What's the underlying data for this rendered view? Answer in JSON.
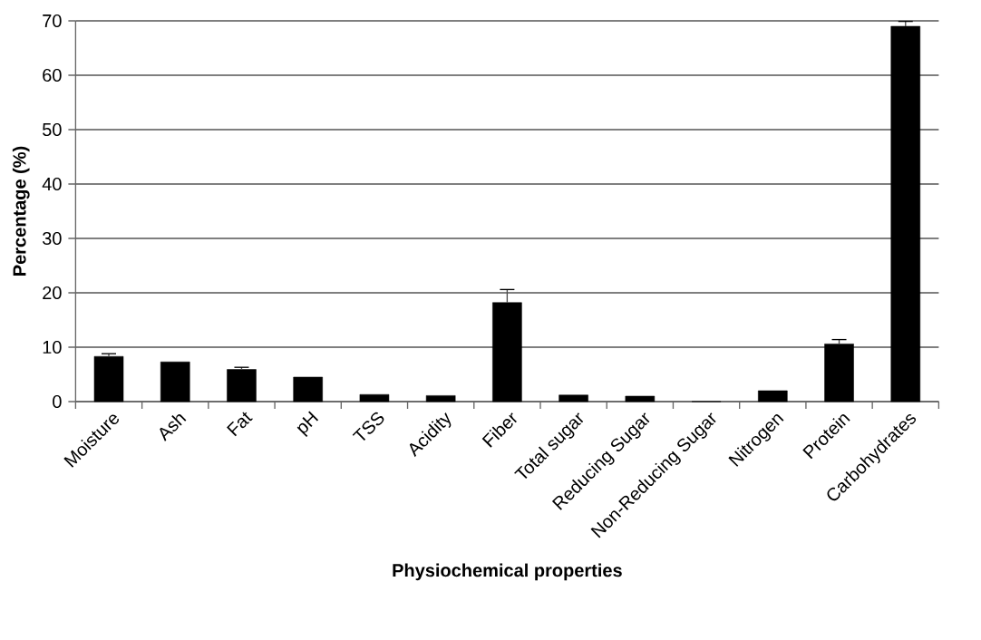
{
  "chart_data": {
    "type": "bar",
    "xlabel": "Physiochemical properties",
    "ylabel": "Percentage (%)",
    "categories": [
      "Moisture",
      "Ash",
      "Fat",
      "pH",
      "TSS",
      "Acidity",
      "Fiber",
      "Total sugar",
      "Reducing Sugar",
      "Non-Reducing Sugar",
      "Nitrogen",
      "Protein",
      "Carbohydrates"
    ],
    "values": [
      8.3,
      7.3,
      5.9,
      4.5,
      1.3,
      1.1,
      18.2,
      1.2,
      1.0,
      0,
      2.0,
      10.6,
      69.0
    ],
    "errors": [
      0.5,
      null,
      0.4,
      null,
      null,
      null,
      2.4,
      null,
      null,
      null,
      null,
      0.8,
      0.9
    ],
    "color": "#000000",
    "ylim": [
      0,
      70
    ],
    "yticks": [
      0,
      10,
      20,
      30,
      40,
      50,
      60,
      70
    ],
    "grid": "y"
  }
}
